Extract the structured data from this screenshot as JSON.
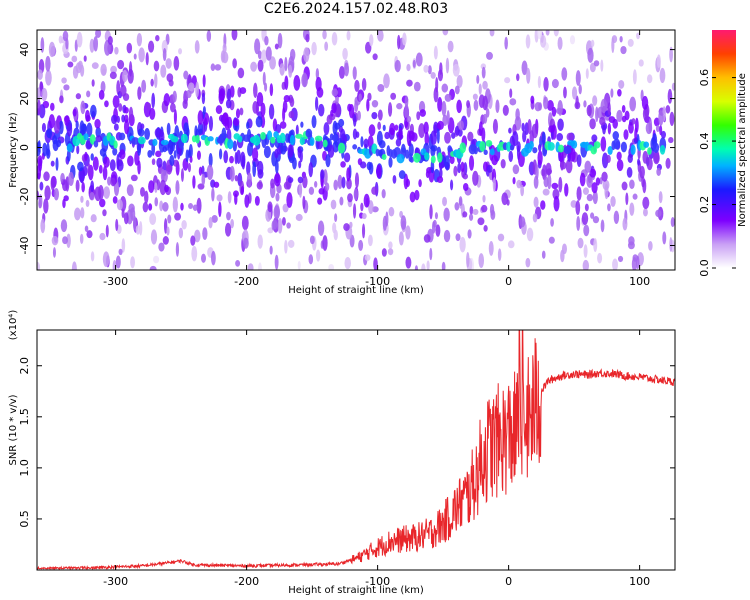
{
  "title": "C2E6.2024.157.02.48.R03",
  "chart_data": [
    {
      "type": "heatmap",
      "xlabel": "Height of straight line (km)",
      "ylabel": "Frequency (Hz)",
      "xlim": [
        -360,
        127
      ],
      "ylim": [
        -50,
        48
      ],
      "xticks": [
        -300,
        -200,
        -100,
        0,
        100
      ],
      "yticks": [
        -40,
        -20,
        0,
        20,
        40
      ],
      "xtick_labels": [
        "-300",
        "-200",
        "-100",
        "0",
        "100"
      ],
      "ytick_labels": [
        "-40",
        "-20",
        "0",
        "20",
        "40"
      ],
      "colorbar": {
        "label": "Normalized spectral amplitude",
        "range": [
          0,
          0.75
        ],
        "ticks": [
          0.0,
          0.2,
          0.4,
          0.6
        ],
        "tick_labels": [
          "0.0",
          "0.2",
          "0.4",
          "0.6"
        ]
      },
      "ridge": {
        "description_values": "spectral peak frequency (Hz) vs height (km)",
        "x": [
          -330,
          -300,
          -250,
          -200,
          -150,
          -120,
          -100,
          -80,
          -60,
          -40,
          -20,
          0,
          20,
          50,
          80,
          110,
          125
        ],
        "y": [
          3,
          3,
          3,
          3,
          4,
          1,
          -2,
          -3,
          -3,
          -2,
          0,
          0,
          0,
          0,
          0,
          0,
          0
        ]
      }
    },
    {
      "type": "line",
      "xlabel": "Height of straight line (km)",
      "ylabel": "SNR (10 * v/v)",
      "y_multiplier_label": "(x10⁴)",
      "xlim": [
        -360,
        127
      ],
      "ylim": [
        0,
        23500
      ],
      "xticks": [
        -300,
        -200,
        -100,
        0,
        100
      ],
      "yticks": [
        5000,
        10000,
        15000,
        20000
      ],
      "xtick_labels": [
        "-300",
        "-200",
        "-100",
        "0",
        "100"
      ],
      "ytick_labels": [
        "0.5",
        "1.0",
        "1.5",
        "2.0"
      ],
      "series": [
        {
          "color": "#e8262a",
          "x": [
            -360,
            -320,
            -280,
            -260,
            -250,
            -240,
            -200,
            -160,
            -130,
            -115,
            -100,
            -90,
            -80,
            -70,
            -60,
            -50,
            -40,
            -30,
            -25,
            -20,
            -15,
            -10,
            -5,
            0,
            5,
            10,
            15,
            20,
            25,
            30,
            40,
            50,
            60,
            70,
            80,
            90,
            100,
            110,
            127
          ],
          "y": [
            100,
            200,
            400,
            700,
            900,
            500,
            400,
            500,
            600,
            1200,
            2200,
            2800,
            3000,
            3200,
            3600,
            4500,
            6000,
            7500,
            9000,
            11000,
            12000,
            12500,
            12800,
            13200,
            13500,
            14000,
            14500,
            16000,
            17500,
            18500,
            19000,
            19200,
            19100,
            19300,
            19200,
            19000,
            18900,
            18700,
            18400
          ]
        }
      ]
    }
  ]
}
